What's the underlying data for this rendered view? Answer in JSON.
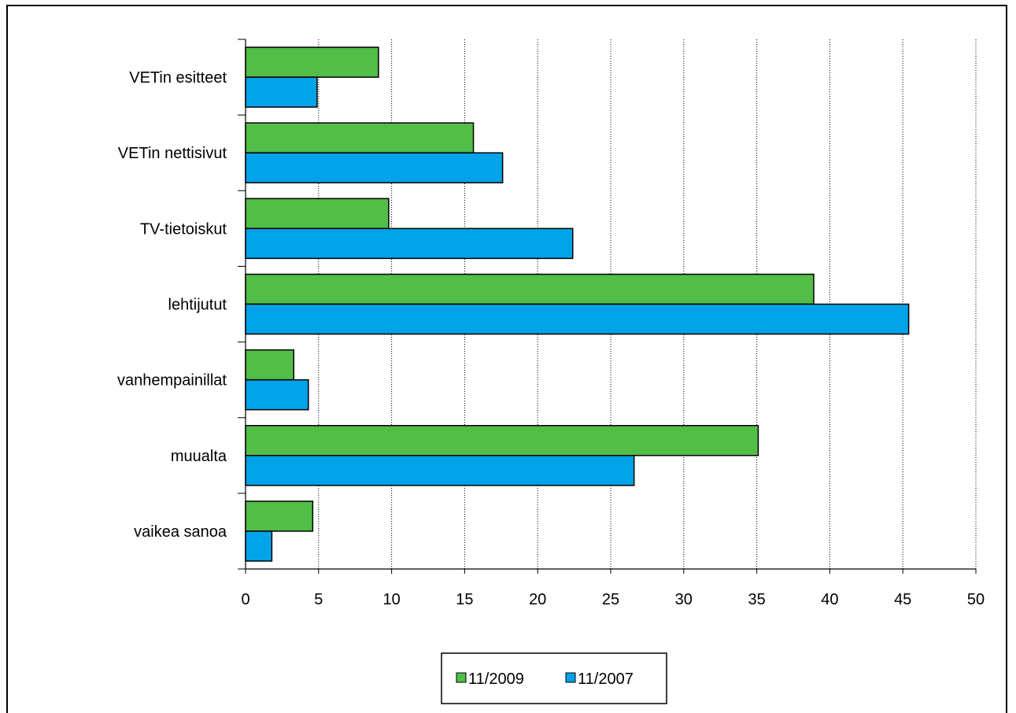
{
  "chart_data": {
    "type": "bar",
    "orientation": "horizontal",
    "categories": [
      "VETin esitteet",
      "VETin nettisivut",
      "TV-tietoiskut",
      "lehtijutut",
      "vanhempainillat",
      "muualta",
      "vaikea sanoa"
    ],
    "series": [
      {
        "name": "11/2009",
        "color": "#52BE48",
        "values": [
          9.1,
          15.6,
          9.8,
          38.9,
          3.3,
          35.1,
          4.6
        ]
      },
      {
        "name": "11/2007",
        "color": "#00A2E8",
        "values": [
          4.9,
          17.6,
          22.4,
          45.4,
          4.3,
          26.6,
          1.8
        ]
      }
    ],
    "xlim": [
      0,
      50
    ],
    "xticks": [
      "0",
      "5",
      "10",
      "15",
      "20",
      "25",
      "30",
      "35",
      "40",
      "45",
      "50"
    ],
    "grid": "vertical dotted",
    "legend_position": "bottom"
  }
}
